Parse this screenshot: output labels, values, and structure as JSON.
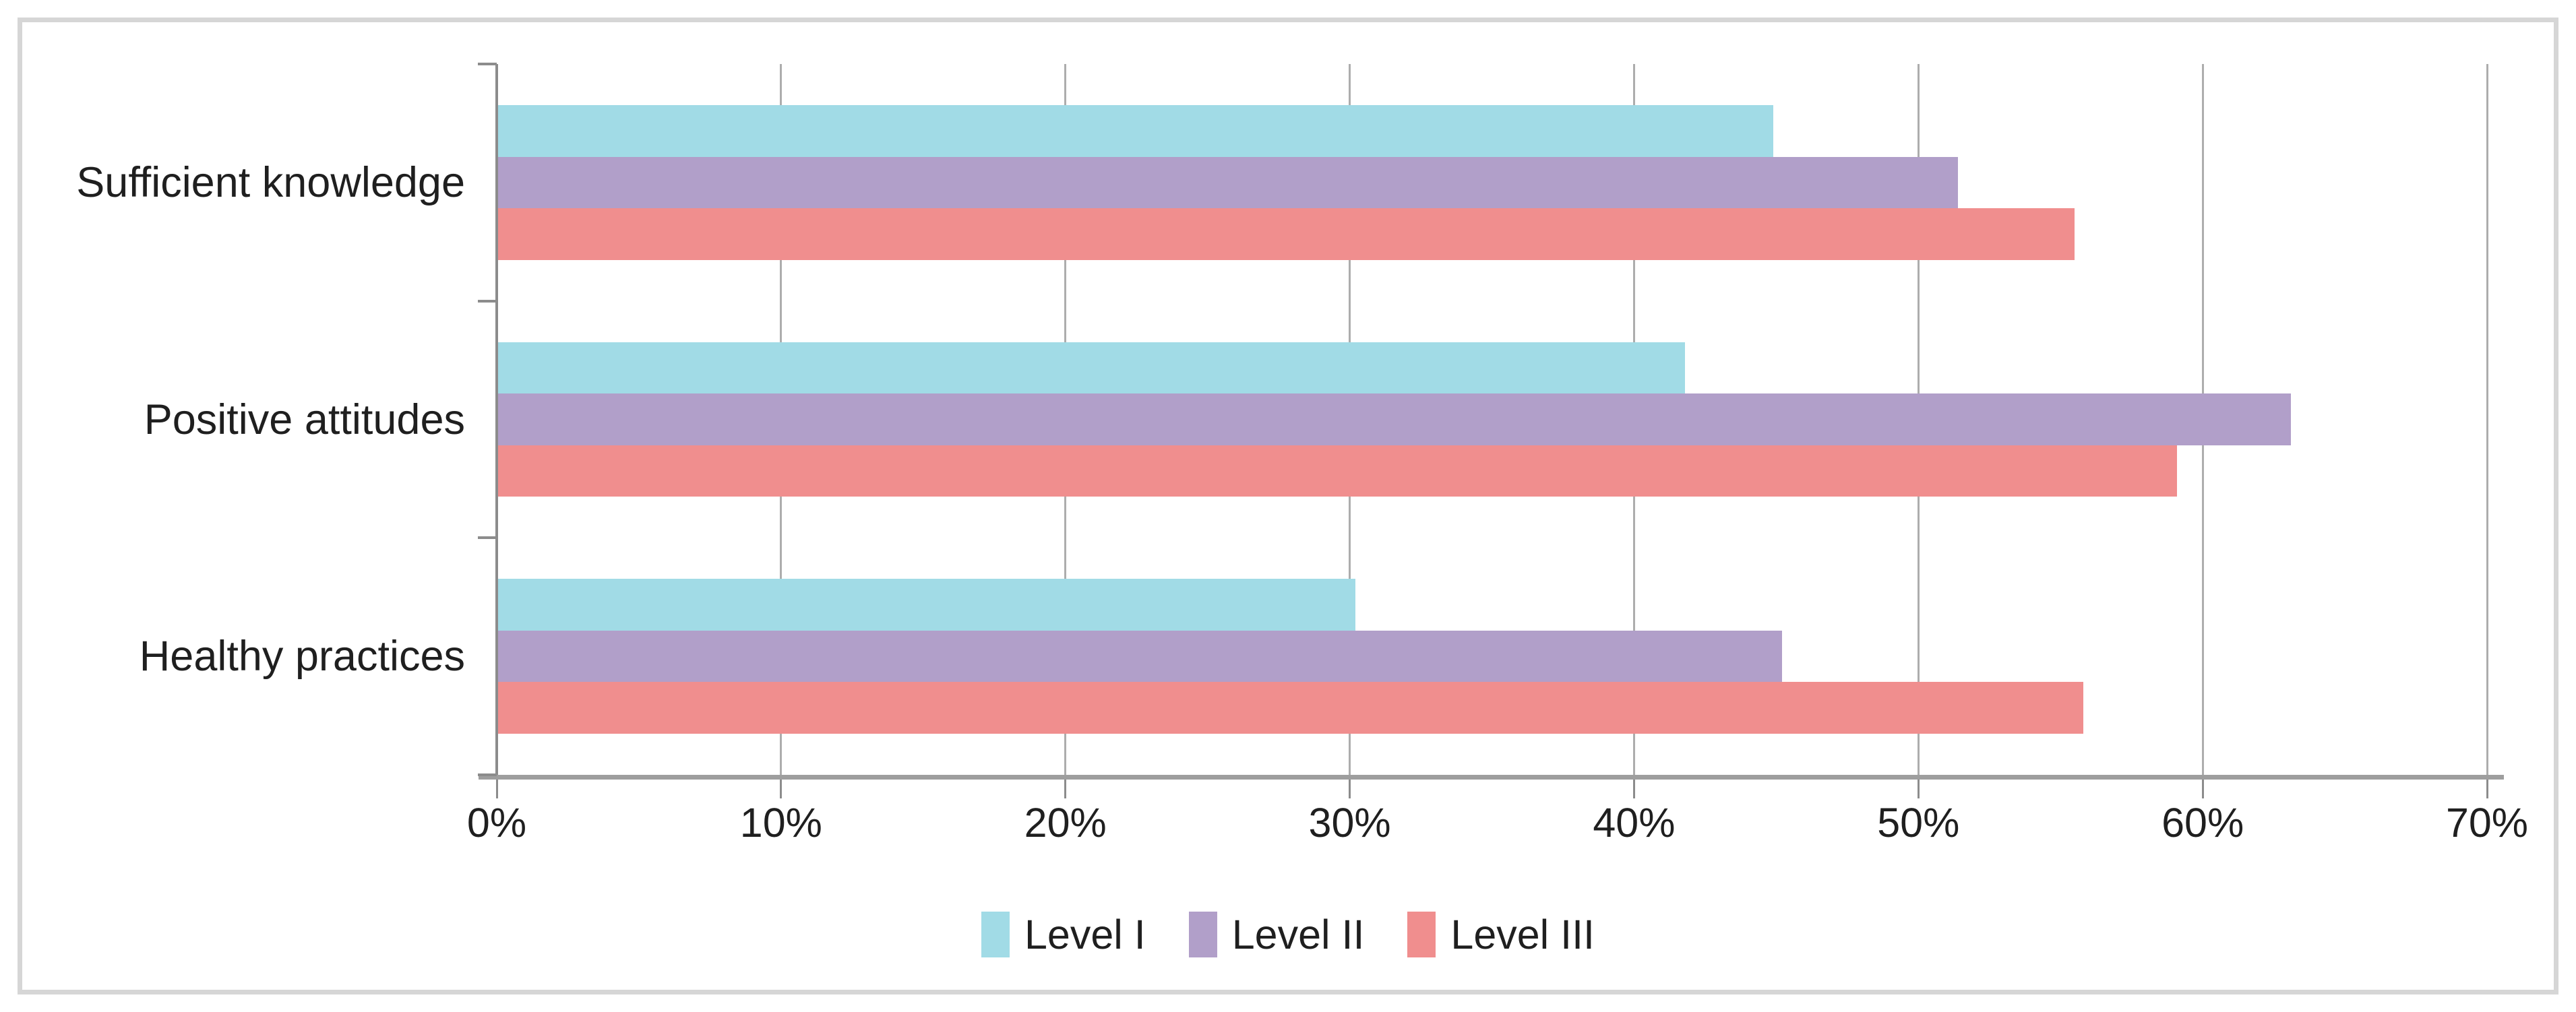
{
  "chart_data": {
    "type": "bar",
    "orientation": "horizontal",
    "title": "",
    "xlabel": "",
    "ylabel": "",
    "categories": [
      "Sufficient knowledge",
      "Positive attitudes",
      "Healthy practices"
    ],
    "series": [
      {
        "name": "Level I",
        "color": "#A1DBE6",
        "values": [
          44.9,
          41.8,
          30.2
        ]
      },
      {
        "name": "Level II",
        "color": "#B19FC9",
        "values": [
          51.4,
          63.1,
          45.2
        ]
      },
      {
        "name": "Level III",
        "color": "#F08E8E",
        "values": [
          55.5,
          59.1,
          55.8
        ]
      }
    ],
    "xlim": [
      0,
      70
    ],
    "x_tick_labels": [
      "0%",
      "10%",
      "20%",
      "30%",
      "40%",
      "50%",
      "60%",
      "70%"
    ],
    "grid": true,
    "legend_position": "bottom-center"
  },
  "colors": {
    "frame_border": "#d6d6d6",
    "gridline": "#adadad",
    "axis": "#8c8c8c",
    "text": "#1f1f1f"
  }
}
